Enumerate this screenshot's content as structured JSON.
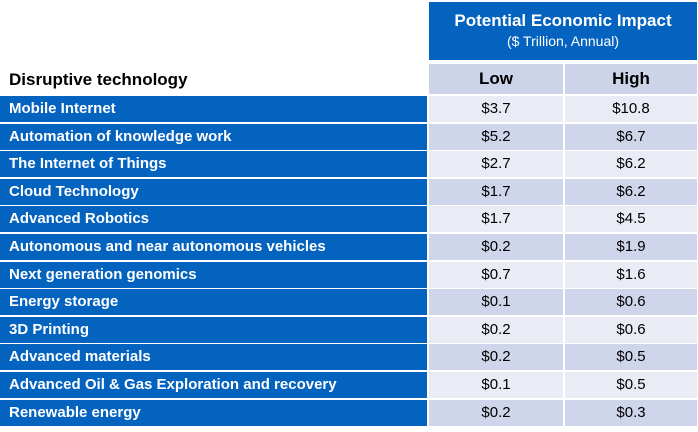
{
  "header": {
    "title": "Potential Economic Impact",
    "subtitle": "($ Trillion, Annual)"
  },
  "columns": {
    "label": "Disruptive technology",
    "low": "Low",
    "high": "High"
  },
  "rows": [
    {
      "name": "Mobile Internet",
      "low": "$3.7",
      "high": "$10.8"
    },
    {
      "name": "Automation of knowledge work",
      "low": "$5.2",
      "high": "$6.7"
    },
    {
      "name": "The Internet of Things",
      "low": "$2.7",
      "high": "$6.2"
    },
    {
      "name": "Cloud Technology",
      "low": "$1.7",
      "high": "$6.2"
    },
    {
      "name": "Advanced Robotics",
      "low": "$1.7",
      "high": "$4.5"
    },
    {
      "name": "Autonomous and near autonomous vehicles",
      "low": "$0.2",
      "high": "$1.9"
    },
    {
      "name": "Next generation genomics",
      "low": "$0.7",
      "high": "$1.6"
    },
    {
      "name": "Energy storage",
      "low": "$0.1",
      "high": "$0.6"
    },
    {
      "name": "3D Printing",
      "low": "$0.2",
      "high": "$0.6"
    },
    {
      "name": "Advanced materials",
      "low": "$0.2",
      "high": "$0.5"
    },
    {
      "name": "Advanced Oil & Gas Exploration and recovery",
      "low": "$0.1",
      "high": "$0.5"
    },
    {
      "name": "Renewable energy",
      "low": "$0.2",
      "high": "$0.3"
    }
  ]
}
